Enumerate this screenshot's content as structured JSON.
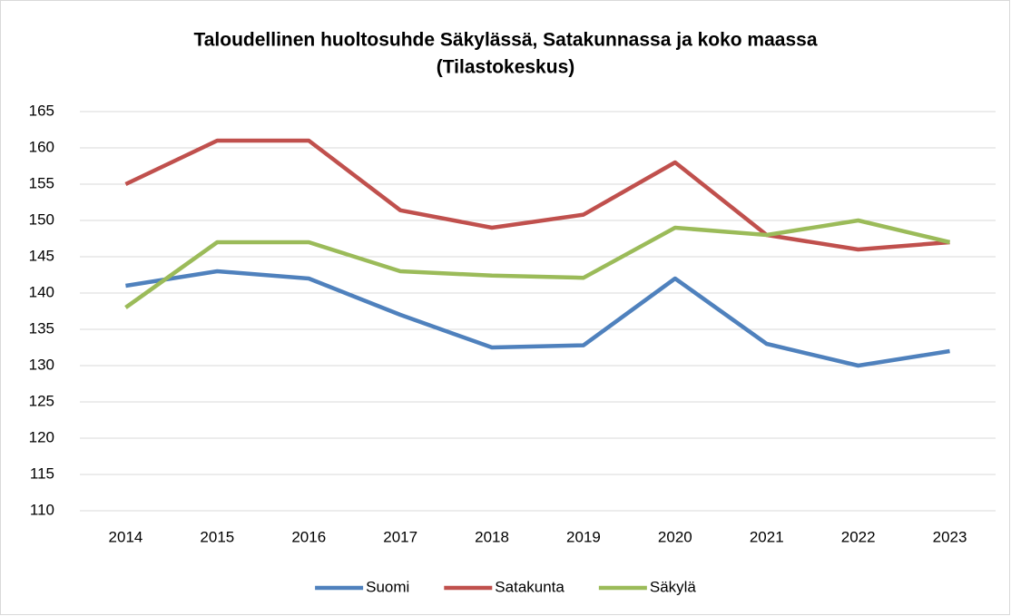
{
  "chart_data": {
    "type": "line",
    "title": "Taloudellinen huoltosuhde Säkylässä, Satakunnassa ja koko maassa",
    "subtitle": "(Tilastokeskus)",
    "categories": [
      "2014",
      "2015",
      "2016",
      "2017",
      "2018",
      "2019",
      "2020",
      "2021",
      "2022",
      "2023"
    ],
    "series": [
      {
        "name": "Suomi",
        "color": "#4f81bd",
        "values": [
          141,
          143,
          142,
          137,
          132.5,
          132.8,
          142,
          133,
          130,
          132
        ]
      },
      {
        "name": "Satakunta",
        "color": "#c0504d",
        "values": [
          155,
          161,
          161,
          151.4,
          149,
          150.8,
          158,
          148,
          146,
          147
        ]
      },
      {
        "name": "Säkylä",
        "color": "#9bbb59",
        "values": [
          138,
          147,
          147,
          143,
          142.4,
          142.1,
          149,
          148,
          150,
          147
        ]
      }
    ],
    "ylim": [
      110,
      165
    ],
    "yticks": [
      110,
      115,
      120,
      125,
      130,
      135,
      140,
      145,
      150,
      155,
      160,
      165
    ],
    "grid": true,
    "legend": "bottom"
  }
}
